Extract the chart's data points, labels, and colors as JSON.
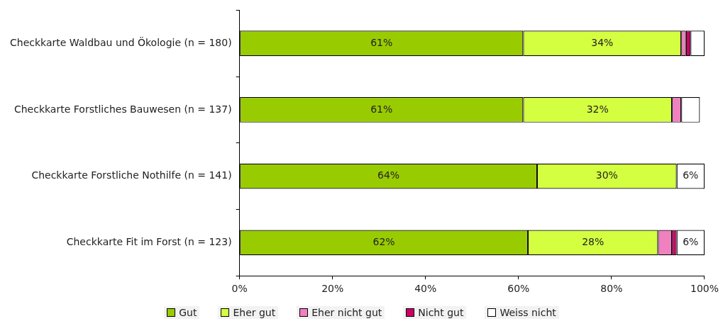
{
  "chart_data": {
    "type": "bar",
    "orientation": "horizontal",
    "stacked": true,
    "categories": [
      "Checkkarte Waldbau und Ökologie (n = 180)",
      "Checkkarte Forstliches Bauwesen (n = 137)",
      "Checkkarte Forstliche Nothilfe (n = 141)",
      "Checkkarte Fit im Forst (n = 123)"
    ],
    "series": [
      {
        "name": "Gut",
        "color": "#99cc00",
        "values": [
          61,
          61,
          64,
          62
        ],
        "value_labels": [
          "61%",
          "61%",
          "64%",
          "62%"
        ]
      },
      {
        "name": "Eher gut",
        "color": "#d4ff40",
        "values": [
          34,
          32,
          30,
          28
        ],
        "value_labels": [
          "34%",
          "32%",
          "30%",
          "28%"
        ]
      },
      {
        "name": "Eher nicht gut",
        "color": "#f080c0",
        "values": [
          1,
          2,
          0,
          3
        ],
        "value_labels": [
          null,
          null,
          null,
          null
        ]
      },
      {
        "name": "Nicht gut",
        "color": "#cc0066",
        "values": [
          1,
          0,
          0,
          1
        ],
        "value_labels": [
          null,
          null,
          null,
          null
        ]
      },
      {
        "name": "Weiss nicht",
        "color": "#ffffff",
        "values": [
          3,
          4,
          6,
          6
        ],
        "value_labels": [
          null,
          null,
          "6%",
          "6%"
        ]
      }
    ],
    "xlim": [
      0,
      100
    ],
    "xticks": [
      {
        "value": 0,
        "label": "0%"
      },
      {
        "value": 20,
        "label": "20%"
      },
      {
        "value": 40,
        "label": "40%"
      },
      {
        "value": 60,
        "label": "60%"
      },
      {
        "value": 80,
        "label": "80%"
      },
      {
        "value": 100,
        "label": "100%"
      }
    ],
    "grid": false,
    "legend": "bottom"
  }
}
